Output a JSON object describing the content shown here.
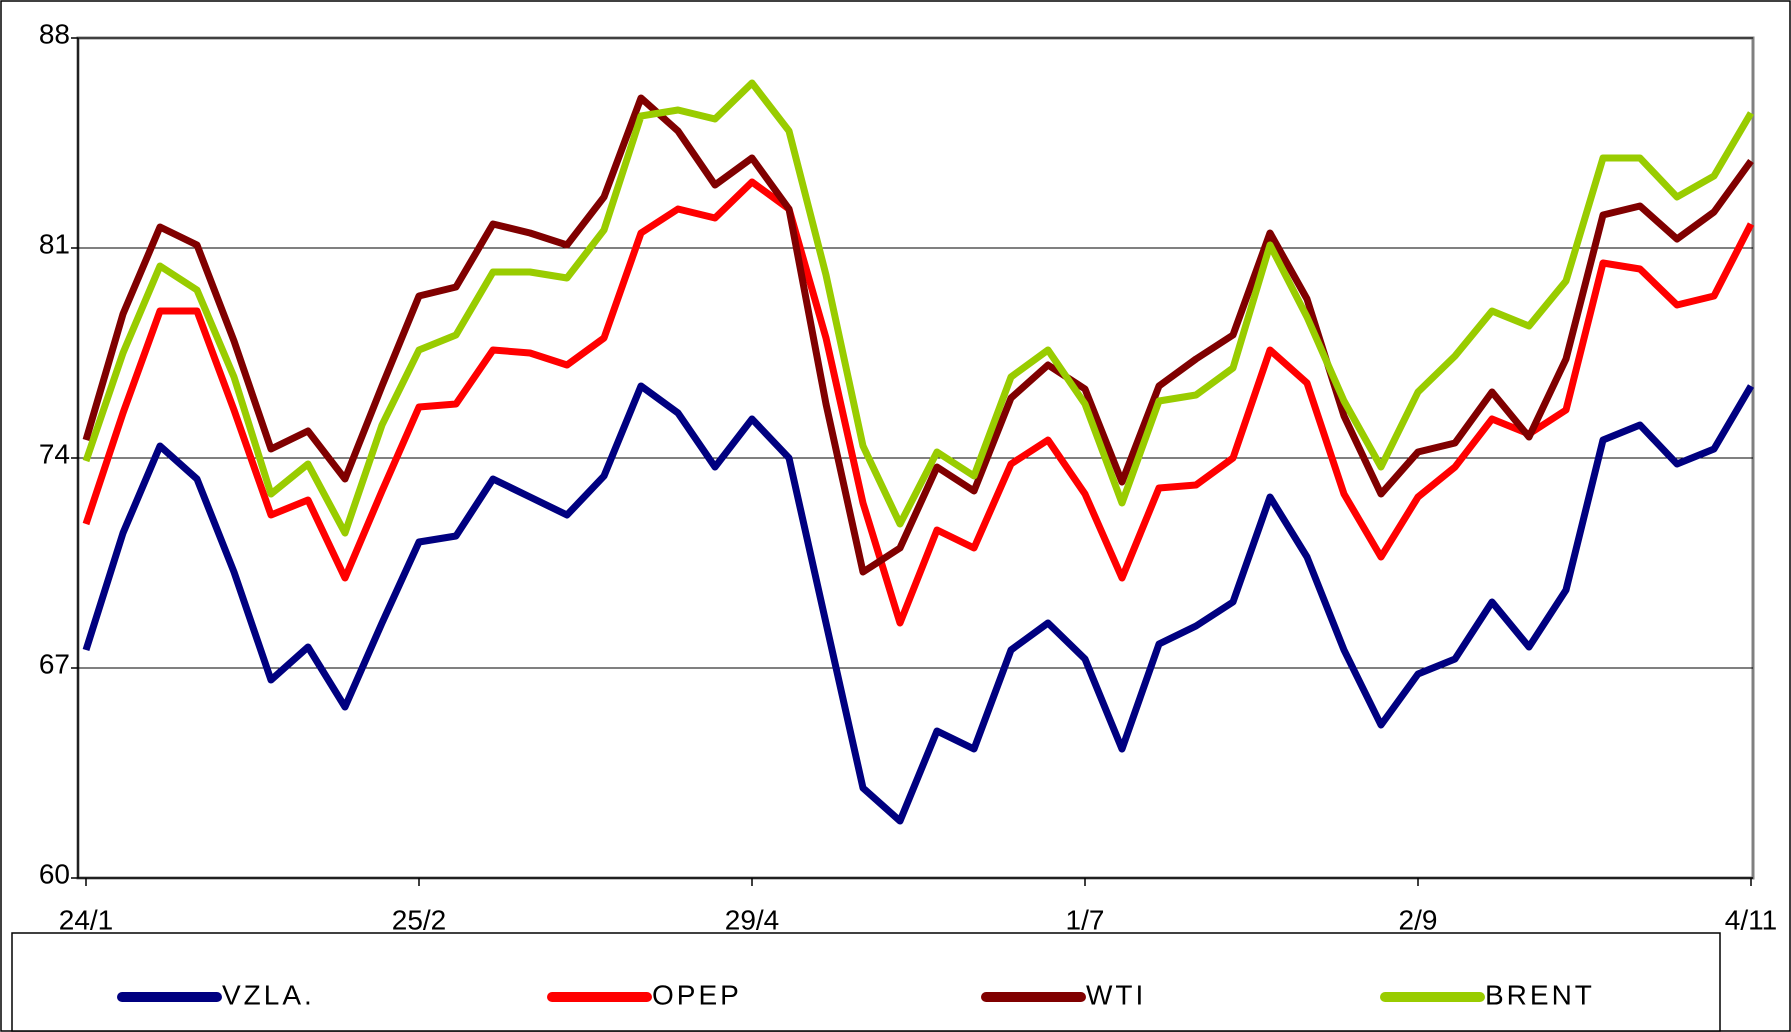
{
  "chart_data": {
    "type": "line",
    "categories": [
      "24/1",
      null,
      null,
      null,
      null,
      null,
      null,
      null,
      null,
      "25/2",
      null,
      null,
      null,
      null,
      null,
      null,
      null,
      null,
      "29/4",
      null,
      null,
      null,
      null,
      null,
      null,
      null,
      null,
      "1/7",
      null,
      null,
      null,
      null,
      null,
      null,
      null,
      null,
      "2/9",
      null,
      null,
      null,
      null,
      null,
      null,
      null,
      null,
      "4/11"
    ],
    "ylim": [
      60,
      88
    ],
    "yticks": [
      60,
      67,
      74,
      81,
      88
    ],
    "grid": true,
    "legend": "bottom",
    "series": [
      {
        "name": "VZLA.",
        "color": "#000080",
        "values": [
          67.6,
          71.5,
          74.4,
          73.3,
          70.2,
          66.6,
          67.7,
          65.7,
          68.5,
          71.2,
          71.4,
          73.3,
          72.7,
          72.1,
          73.4,
          76.4,
          75.5,
          73.7,
          75.3,
          74.0,
          68.5,
          63.0,
          61.9,
          64.9,
          64.3,
          67.6,
          68.5,
          67.3,
          64.3,
          67.8,
          68.4,
          69.2,
          72.7,
          70.7,
          67.6,
          65.1,
          66.8,
          67.3,
          69.2,
          67.7,
          69.6,
          74.6,
          75.1,
          73.8,
          74.3,
          76.4
        ]
      },
      {
        "name": "OPEP",
        "color": "#ff0000",
        "values": [
          71.8,
          75.5,
          78.9,
          78.9,
          75.6,
          72.1,
          72.6,
          70.0,
          72.9,
          75.7,
          75.8,
          77.6,
          77.5,
          77.1,
          78.0,
          81.5,
          82.3,
          82.0,
          83.2,
          82.3,
          78.0,
          72.5,
          68.5,
          71.6,
          71.0,
          73.8,
          74.6,
          72.8,
          70.0,
          73.0,
          73.1,
          74.0,
          77.6,
          76.5,
          72.8,
          70.7,
          72.7,
          73.7,
          75.3,
          74.8,
          75.6,
          80.5,
          80.3,
          79.1,
          79.4,
          81.8
        ]
      },
      {
        "name": "WTI",
        "color": "#800000",
        "values": [
          74.6,
          78.8,
          81.7,
          81.1,
          77.9,
          74.3,
          74.9,
          73.3,
          76.4,
          79.4,
          79.7,
          81.8,
          81.5,
          81.1,
          82.7,
          86.0,
          84.9,
          83.1,
          84.0,
          82.3,
          75.8,
          70.2,
          71.0,
          73.7,
          72.9,
          76.0,
          77.1,
          76.3,
          73.2,
          76.4,
          77.3,
          78.1,
          81.5,
          79.3,
          75.4,
          72.8,
          74.2,
          74.5,
          76.2,
          74.7,
          77.3,
          82.1,
          82.4,
          81.3,
          82.2,
          83.9
        ]
      },
      {
        "name": "BRENT",
        "color": "#99cc00",
        "values": [
          73.9,
          77.5,
          80.4,
          79.6,
          76.7,
          72.8,
          73.8,
          71.5,
          75.1,
          77.6,
          78.1,
          80.2,
          80.2,
          80.0,
          81.6,
          85.4,
          85.6,
          85.3,
          86.5,
          84.9,
          80.1,
          74.4,
          71.8,
          74.2,
          73.4,
          76.7,
          77.6,
          75.8,
          72.5,
          75.9,
          76.1,
          77.0,
          81.1,
          78.7,
          75.9,
          73.7,
          76.2,
          77.4,
          78.9,
          78.4,
          79.9,
          84.0,
          84.0,
          82.7,
          83.4,
          85.5
        ]
      }
    ]
  }
}
